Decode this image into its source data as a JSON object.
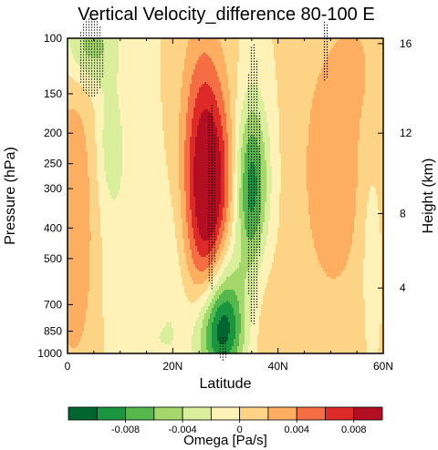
{
  "chart_data": {
    "type": "heatmap",
    "title": "Vertical Velocity_difference 80-100 E",
    "xlabel": "Latitude",
    "ylabel": "Pressure (hPa)",
    "y2label": "Height (km)",
    "colorbar_label": "Omega [Pa/s]",
    "x_range": [
      0,
      60
    ],
    "x_ticks": [
      {
        "value": 0,
        "label": "0"
      },
      {
        "value": 20,
        "label": "20N"
      },
      {
        "value": 40,
        "label": "40N"
      },
      {
        "value": 60,
        "label": "60N"
      }
    ],
    "y_scale": "log",
    "y_range": [
      1000,
      100
    ],
    "y_ticks": [
      1000,
      850,
      700,
      500,
      400,
      300,
      250,
      200,
      150,
      100
    ],
    "y2_ticks": [
      {
        "label": "4",
        "pressure": 620
      },
      {
        "label": "8",
        "pressure": 360
      },
      {
        "label": "12",
        "pressure": 200
      },
      {
        "label": "16",
        "pressure": 104
      }
    ],
    "levels": [
      -0.01,
      -0.008,
      -0.006,
      -0.004,
      -0.002,
      0,
      0.002,
      0.004,
      0.006,
      0.008,
      0.01
    ],
    "colorbar_labels": [
      {
        "value": -0.008,
        "label": "-0.008"
      },
      {
        "value": -0.004,
        "label": "-0.004"
      },
      {
        "value": 0,
        "label": "0"
      },
      {
        "value": 0.004,
        "label": "0.004"
      },
      {
        "value": 0.008,
        "label": "0.008"
      }
    ],
    "colors": [
      "#00652f",
      "#1a9641",
      "#55b84d",
      "#a5d86a",
      "#d9ef9b",
      "#fff2b6",
      "#fdd385",
      "#fdae61",
      "#f46d43",
      "#de2a26",
      "#b30e22"
    ],
    "features": [
      {
        "lat": 27,
        "p": 320,
        "sx": 3.2,
        "sy": 0.55,
        "omega": 0.0105
      },
      {
        "lat": 25.5,
        "p": 160,
        "sx": 2.8,
        "sy": 0.55,
        "omega": 0.003
      },
      {
        "lat": 1.5,
        "p": 380,
        "sx": 3.5,
        "sy": 0.8,
        "omega": 0.0042
      },
      {
        "lat": 35,
        "p": 300,
        "sx": 2.3,
        "sy": 0.45,
        "omega": -0.0095
      },
      {
        "lat": 30,
        "p": 580,
        "sx": 2.4,
        "sy": 0.32,
        "omega": -0.0042
      },
      {
        "lat": 29,
        "p": 860,
        "sx": 3.2,
        "sy": 0.26,
        "omega": -0.0105
      },
      {
        "lat": 50.5,
        "p": 260,
        "sx": 5.0,
        "sy": 0.8,
        "omega": 0.0033
      },
      {
        "lat": 4,
        "p": 105,
        "sx": 3.5,
        "sy": 0.2,
        "omega": -0.005
      },
      {
        "lat": 8.5,
        "p": 320,
        "sx": 4.0,
        "sy": 0.8,
        "omega": -0.0018
      },
      {
        "lat": 8,
        "p": 210,
        "sx": 1.6,
        "sy": 0.3,
        "omega": -0.0022
      },
      {
        "lat": 20,
        "p": 650,
        "sx": 2.2,
        "sy": 0.6,
        "omega": -0.0018
      },
      {
        "lat": 37,
        "p": 700,
        "sx": 2.2,
        "sy": 0.6,
        "omega": 0.0015
      },
      {
        "lat": 57.5,
        "p": 450,
        "sx": 1.3,
        "sy": 0.45,
        "omega": -0.0018
      },
      {
        "lat": 55,
        "p": 120,
        "sx": 2.5,
        "sy": 0.25,
        "omega": 0.0013
      },
      {
        "lat": 15,
        "p": 900,
        "sx": 3.0,
        "sy": 0.15,
        "omega": -0.0016
      }
    ],
    "stipple_regions": [
      {
        "lat": 4.5,
        "p": 115,
        "rx": 2.5,
        "rp": 0.13
      },
      {
        "lat": 27.3,
        "p": 320,
        "rx": 0.9,
        "rp": 0.3
      },
      {
        "lat": 35.3,
        "p": 290,
        "rx": 1.4,
        "rp": 0.45
      },
      {
        "lat": 49,
        "p": 110,
        "rx": 0.7,
        "rp": 0.1
      },
      {
        "lat": 29.5,
        "p": 960,
        "rx": 1.0,
        "rp": 0.04
      }
    ]
  }
}
